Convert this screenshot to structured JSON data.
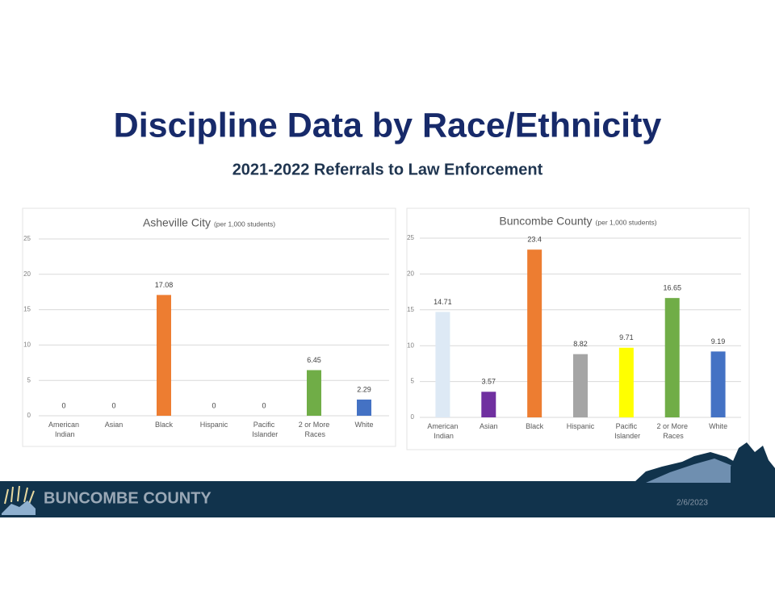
{
  "title": "Discipline Data by Race/Ethnicity",
  "subtitle": "2021-2022 Referrals to Law Enforcement",
  "footer": {
    "organization": "BUNCOMBE COUNTY",
    "date": "2/6/2023"
  },
  "chart_data": [
    {
      "type": "bar",
      "title": "Asheville City",
      "subtitle": "(per 1,000 students)",
      "categories": [
        "American Indian",
        "Asian",
        "Black",
        "Hispanic",
        "Pacific Islander",
        "2 or More Races",
        "White"
      ],
      "values": [
        0,
        0,
        17.08,
        0,
        0,
        6.45,
        2.29
      ],
      "colors": [
        "#dde9f5",
        "#7030a0",
        "#ed7d31",
        "#a5a5a5",
        "#ffff00",
        "#70ad47",
        "#4472c4"
      ],
      "ylim": [
        0,
        25
      ],
      "yticks": [
        0,
        5,
        10,
        15,
        20,
        25
      ],
      "grid": true
    },
    {
      "type": "bar",
      "title": "Buncombe County",
      "subtitle": "(per 1,000 students)",
      "categories": [
        "American Indian",
        "Asian",
        "Black",
        "Hispanic",
        "Pacific Islander",
        "2 or More Races",
        "White"
      ],
      "values": [
        14.71,
        3.57,
        23.4,
        8.82,
        9.71,
        16.65,
        9.19
      ],
      "colors": [
        "#dde9f5",
        "#7030a0",
        "#ed7d31",
        "#a5a5a5",
        "#ffff00",
        "#70ad47",
        "#4472c4"
      ],
      "ylim": [
        0,
        25
      ],
      "yticks": [
        0,
        5,
        10,
        15,
        20,
        25
      ],
      "grid": true
    }
  ]
}
